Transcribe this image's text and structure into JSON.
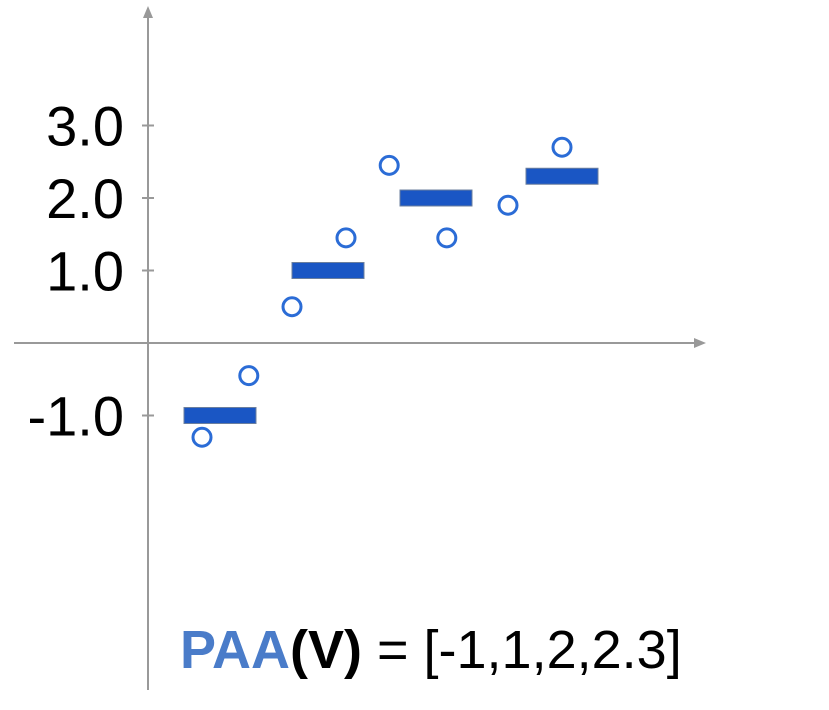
{
  "chart_data": {
    "type": "scatter",
    "ylim": [
      -3.0,
      3.9
    ],
    "xlim": [
      0,
      8
    ],
    "ytick_labels": [
      {
        "value": 3.0,
        "label": "3.0"
      },
      {
        "value": 2.0,
        "label": "2.0"
      },
      {
        "value": 1.0,
        "label": "1.0"
      },
      {
        "value": -1.0,
        "label": "-1.0"
      }
    ],
    "points": [
      {
        "x": 0.75,
        "y": -1.3
      },
      {
        "x": 1.4,
        "y": -0.45
      },
      {
        "x": 2.0,
        "y": 0.5
      },
      {
        "x": 2.75,
        "y": 1.45
      },
      {
        "x": 3.35,
        "y": 2.45
      },
      {
        "x": 4.15,
        "y": 1.45
      },
      {
        "x": 5.0,
        "y": 1.9
      },
      {
        "x": 5.75,
        "y": 2.7
      }
    ],
    "segments": [
      {
        "x_start": 0.5,
        "x_end": 1.5,
        "value": -1.0
      },
      {
        "x_start": 2.0,
        "x_end": 3.0,
        "value": 1.0
      },
      {
        "x_start": 3.5,
        "x_end": 4.5,
        "value": 2.0
      },
      {
        "x_start": 5.25,
        "x_end": 6.25,
        "value": 2.3
      }
    ],
    "grid": false,
    "colors": {
      "axis": "#999999",
      "segment": "#1a56c4",
      "point": "#2b6cd6",
      "paa_text": "#4a7cc9"
    }
  },
  "formula": {
    "name": "PAA",
    "arg": "(V)",
    "rest": " = [-1,1,2,2.3]"
  }
}
